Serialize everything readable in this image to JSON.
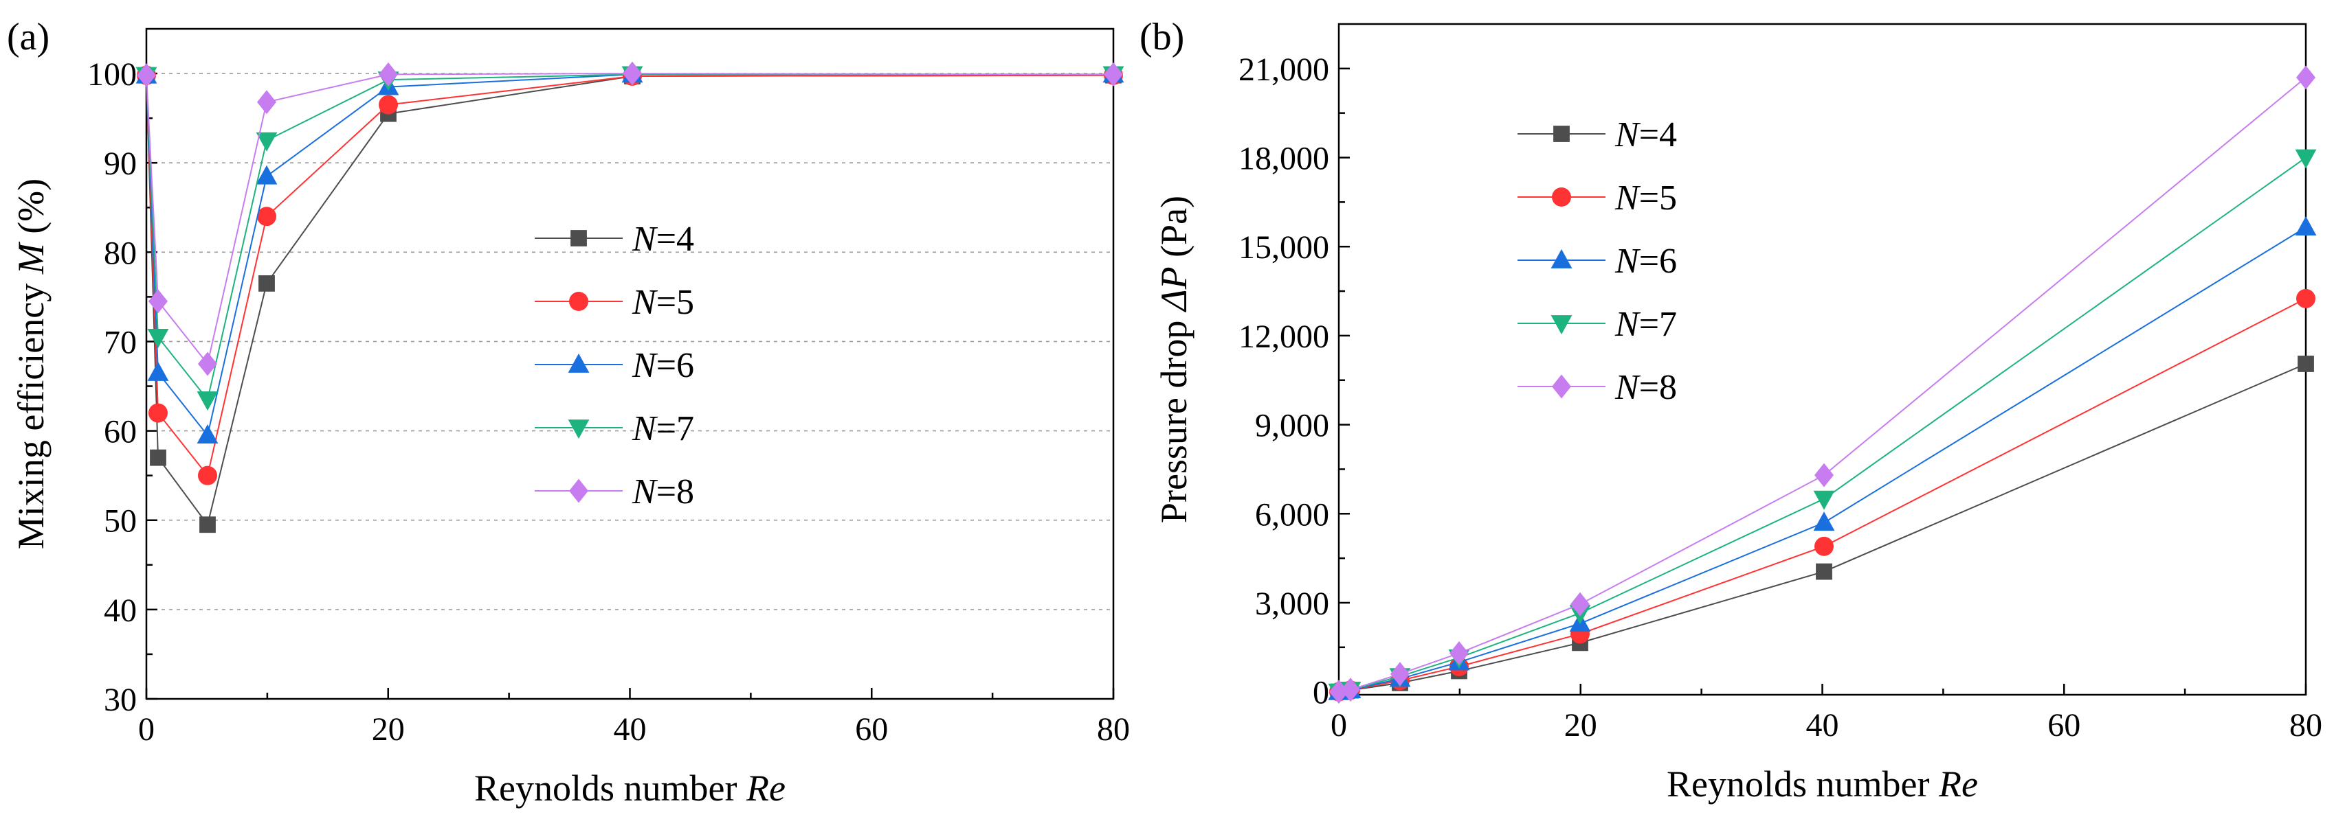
{
  "chart_data": [
    {
      "panel": "(a)",
      "type": "line",
      "xlabel": "Reynolds number",
      "xlabel_italic": "Re",
      "ylabel": "Mixing efficiency",
      "ylabel_italic": "M",
      "ylabel_suffix": "(%)",
      "x_ticks": [
        "0",
        "20",
        "40",
        "60",
        "80"
      ],
      "y_ticks": [
        "30",
        "40",
        "50",
        "60",
        "70",
        "80",
        "90",
        "100"
      ],
      "ylim": [
        30,
        105
      ],
      "x_positions": [
        0,
        1,
        5,
        10,
        20,
        40,
        80
      ],
      "grid": true,
      "legend_position": "center",
      "series": [
        {
          "name": "N=4",
          "label_var": "N",
          "label_val": "=4",
          "color": "#4d4d4d",
          "marker": "square",
          "values": [
            99.8,
            57,
            49.5,
            76.5,
            95.5,
            99.7,
            99.8
          ]
        },
        {
          "name": "N=5",
          "label_var": "N",
          "label_val": "=5",
          "color": "#ff3333",
          "marker": "circle",
          "values": [
            99.8,
            62,
            55,
            84,
            96.5,
            99.7,
            99.8
          ]
        },
        {
          "name": "N=6",
          "label_var": "N",
          "label_val": "=6",
          "color": "#1a6fdf",
          "marker": "triangle-up",
          "values": [
            99.8,
            66.5,
            59.5,
            88.5,
            98.5,
            99.9,
            99.9
          ]
        },
        {
          "name": "N=7",
          "label_var": "N",
          "label_val": "=7",
          "color": "#1db37f",
          "marker": "triangle-down",
          "values": [
            99.8,
            70.5,
            63.5,
            92.5,
            99.3,
            99.9,
            99.9
          ]
        },
        {
          "name": "N=8",
          "label_var": "N",
          "label_val": "=8",
          "color": "#c77cf0",
          "marker": "diamond",
          "values": [
            99.8,
            74.5,
            67.5,
            96.8,
            99.9,
            100,
            99.9
          ]
        }
      ]
    },
    {
      "panel": "(b)",
      "type": "line",
      "xlabel": "Reynolds number",
      "xlabel_italic": "Re",
      "ylabel": "Pressure drop",
      "ylabel_italic": "ΔP",
      "ylabel_suffix": "(Pa)",
      "x_ticks": [
        "0",
        "20",
        "40",
        "60",
        "80"
      ],
      "y_ticks": [
        "0",
        "3,000",
        "6,000",
        "9,000",
        "12,000",
        "15,000",
        "18,000",
        "21,000"
      ],
      "ylim": [
        -100,
        22500
      ],
      "x_positions": [
        0,
        1,
        5,
        10,
        20,
        40,
        80
      ],
      "grid": false,
      "legend_position": "top-left",
      "series": [
        {
          "name": "N=4",
          "label_var": "N",
          "label_val": "=4",
          "color": "#4d4d4d",
          "marker": "square",
          "values": [
            0,
            50,
            300,
            700,
            1650,
            4050,
            11050
          ]
        },
        {
          "name": "N=5",
          "label_var": "N",
          "label_val": "=5",
          "color": "#ff3333",
          "marker": "circle",
          "values": [
            0,
            55,
            380,
            850,
            1950,
            4900,
            13250
          ]
        },
        {
          "name": "N=6",
          "label_var": "N",
          "label_val": "=6",
          "color": "#1a6fdf",
          "marker": "triangle-up",
          "values": [
            0,
            60,
            440,
            1000,
            2300,
            5700,
            15650
          ]
        },
        {
          "name": "N=7",
          "label_var": "N",
          "label_val": "=7",
          "color": "#1db37f",
          "marker": "triangle-down",
          "values": [
            0,
            65,
            520,
            1150,
            2650,
            6500,
            18000
          ]
        },
        {
          "name": "N=8",
          "label_var": "N",
          "label_val": "=8",
          "color": "#c77cf0",
          "marker": "diamond",
          "values": [
            0,
            70,
            600,
            1300,
            2950,
            7300,
            20700
          ]
        }
      ]
    }
  ]
}
